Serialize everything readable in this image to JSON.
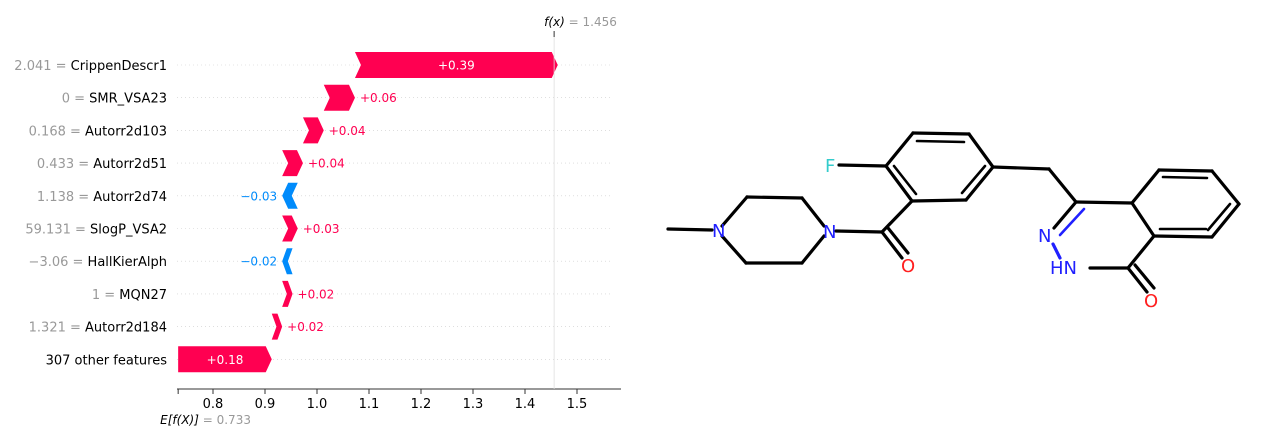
{
  "chart_data": {
    "type": "waterfall",
    "xlim": [
      0.75,
      1.58
    ],
    "x_ticks": [
      0.8,
      0.9,
      1.0,
      1.1,
      1.2,
      1.3,
      1.4,
      1.5
    ],
    "x_tick_labels": [
      "0.8",
      "0.9",
      "1.0",
      "1.1",
      "1.2",
      "1.3",
      "1.4",
      "1.5"
    ],
    "base_value": 0.733,
    "base_label_prefix": "E[f(X)]",
    "base_label_value": "= 0.733",
    "output_value": 1.456,
    "output_label_prefix": "f(x)",
    "output_label_value": "= 1.456",
    "features": [
      {
        "value": "2.041",
        "name": "CrippenDescr1",
        "contribution": 0.39,
        "label": "+0.39"
      },
      {
        "value": "0",
        "name": "SMR_VSA23",
        "contribution": 0.06,
        "label": "+0.06"
      },
      {
        "value": "0.168",
        "name": "Autorr2d103",
        "contribution": 0.04,
        "label": "+0.04"
      },
      {
        "value": "0.433",
        "name": "Autorr2d51",
        "contribution": 0.04,
        "label": "+0.04"
      },
      {
        "value": "1.138",
        "name": "Autorr2d74",
        "contribution": -0.03,
        "label": "−0.03"
      },
      {
        "value": "59.131",
        "name": "SlogP_VSA2",
        "contribution": 0.03,
        "label": "+0.03"
      },
      {
        "value": "−3.06",
        "name": "HallKierAlph",
        "contribution": -0.02,
        "label": "−0.02"
      },
      {
        "value": "1",
        "name": "MQN27",
        "contribution": 0.02,
        "label": "+0.02"
      },
      {
        "value": "1.321",
        "name": "Autorr2d184",
        "contribution": 0.02,
        "label": "+0.02"
      },
      {
        "value": "",
        "name": "307 other features",
        "contribution": 0.18,
        "label": "+0.18"
      }
    ]
  },
  "colors": {
    "positive": "#ff0051",
    "negative": "#008bfb",
    "axis": "#333333",
    "muted": "#999999",
    "grid": "#e0e0e0"
  },
  "molecule": {
    "atoms": [
      {
        "symbol": "F",
        "color": "#33cccc"
      },
      {
        "symbol": "N",
        "color": "#2020ff"
      },
      {
        "symbol": "N",
        "color": "#2020ff"
      },
      {
        "symbol": "O",
        "color": "#ff2020"
      },
      {
        "symbol": "N",
        "color": "#2020ff"
      },
      {
        "symbol": "HN",
        "color": "#2020ff"
      },
      {
        "symbol": "O",
        "color": "#ff2020"
      }
    ]
  }
}
